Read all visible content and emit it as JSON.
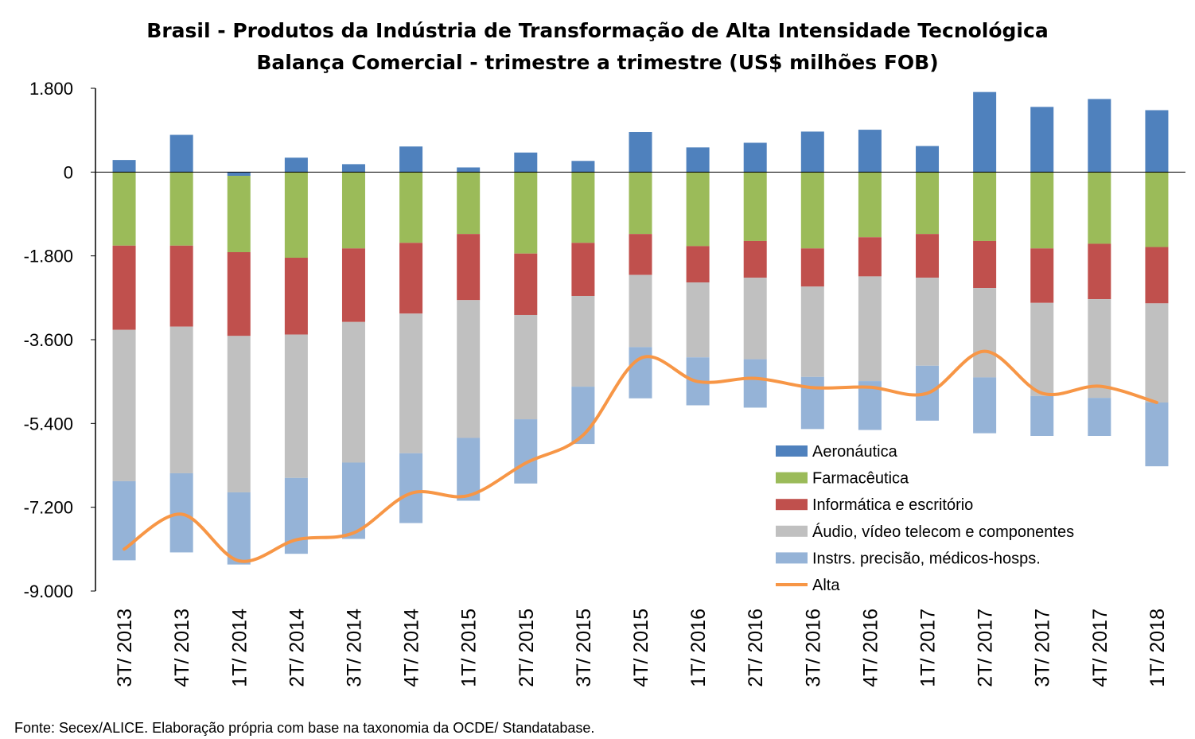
{
  "chart_data": {
    "type": "bar",
    "stacked": true,
    "title": "Brasil - Produtos da Indústria de Transformação de Alta Intensidade Tecnológica",
    "subtitle": "Balança Comercial - trimestre a trimestre (US$ milhões FOB)",
    "source": "Fonte: Secex/ALICE. Elaboração própria com base na taxonomia da OCDE/ Standatabase.",
    "ylim": [
      -9000,
      1800
    ],
    "yticks": [
      1800,
      0,
      -1800,
      -3600,
      -5400,
      -7200,
      -9000
    ],
    "ytick_labels": [
      "1.800",
      "0",
      "-1.800",
      "-3.600",
      "-5.400",
      "-7.200",
      "-9.000"
    ],
    "legend_position": "right",
    "categories": [
      "3T/ 2013",
      "4T/ 2013",
      "1T/ 2014",
      "2T/ 2014",
      "3T/ 2014",
      "4T/ 2014",
      "1T/ 2015",
      "2T/ 2015",
      "3T/ 2015",
      "4T/ 2015",
      "1T/ 2016",
      "2T/ 2016",
      "3T/ 2016",
      "4T/ 2016",
      "1T/ 2017",
      "2T/ 2017",
      "3T/ 2017",
      "4T/ 2017",
      "1T/ 2018"
    ],
    "series": [
      {
        "name": "Aeronáutica",
        "color": "#4F81BD",
        "values": [
          260,
          800,
          -80,
          310,
          170,
          550,
          100,
          420,
          240,
          860,
          530,
          630,
          870,
          910,
          560,
          1720,
          1400,
          1570,
          1330
        ]
      },
      {
        "name": "Farmacêutica",
        "color": "#9BBB59",
        "values": [
          -1580,
          -1580,
          -1640,
          -1840,
          -1640,
          -1520,
          -1330,
          -1750,
          -1520,
          -1330,
          -1590,
          -1480,
          -1640,
          -1400,
          -1330,
          -1480,
          -1640,
          -1540,
          -1610
        ]
      },
      {
        "name": "Informática e escritório",
        "color": "#C0504D",
        "values": [
          -1810,
          -1740,
          -1800,
          -1650,
          -1580,
          -1520,
          -1420,
          -1320,
          -1140,
          -880,
          -780,
          -790,
          -820,
          -840,
          -940,
          -1010,
          -1170,
          -1190,
          -1210
        ]
      },
      {
        "name": "Áudio, vídeo telecom e componentes",
        "color": "#C0C0C0",
        "values": [
          -3250,
          -3150,
          -3360,
          -3080,
          -3020,
          -3000,
          -2960,
          -2240,
          -1950,
          -1550,
          -1610,
          -1750,
          -1940,
          -2250,
          -1890,
          -1920,
          -2000,
          -2120,
          -2130
        ]
      },
      {
        "name": "Instrs. precisão, médicos-hosps.",
        "color": "#95B3D7",
        "values": [
          -1700,
          -1700,
          -1550,
          -1630,
          -1640,
          -1500,
          -1350,
          -1380,
          -1230,
          -1100,
          -1030,
          -1040,
          -1120,
          -1050,
          -1180,
          -1200,
          -1280,
          -1300,
          -1370
        ]
      }
    ],
    "line_series": {
      "name": "Alta",
      "color": "#F79646",
      "values": [
        -8100,
        -7350,
        -8350,
        -7900,
        -7750,
        -6900,
        -6950,
        -6250,
        -5650,
        -4000,
        -4500,
        -4430,
        -4630,
        -4620,
        -4750,
        -3850,
        -4750,
        -4600,
        -4950
      ]
    }
  }
}
